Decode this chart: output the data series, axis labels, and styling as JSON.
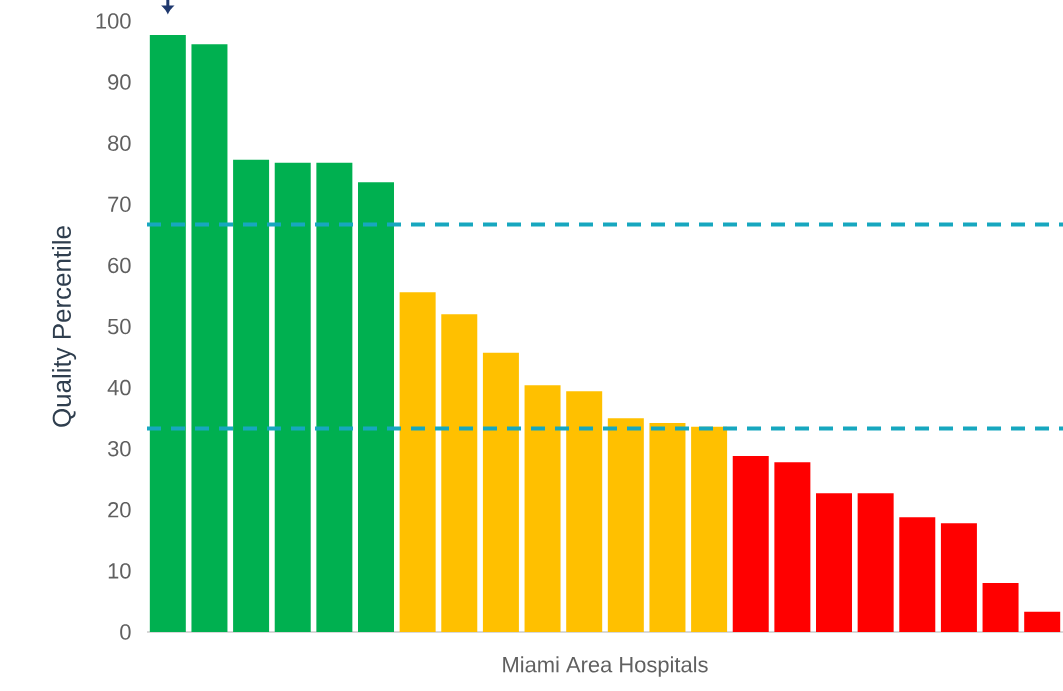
{
  "chart_data": {
    "type": "bar",
    "xlabel": "Miami Area Hospitals",
    "ylabel": "Quality Percentile",
    "categories": [
      null,
      null,
      null,
      null,
      null,
      null,
      null,
      null,
      null,
      null,
      null,
      null,
      null,
      null,
      null,
      null,
      null,
      null,
      null,
      null,
      null,
      null
    ],
    "values": [
      97.7,
      96.2,
      77.3,
      76.8,
      76.8,
      73.6,
      55.6,
      52.0,
      45.7,
      40.4,
      39.4,
      35.0,
      34.2,
      33.6,
      28.8,
      27.8,
      22.7,
      22.7,
      18.8,
      17.8,
      8.0,
      3.3
    ],
    "colors": [
      "#00b050",
      "#00b050",
      "#00b050",
      "#00b050",
      "#00b050",
      "#00b050",
      "#ffc000",
      "#ffc000",
      "#ffc000",
      "#ffc000",
      "#ffc000",
      "#ffc000",
      "#ffc000",
      "#ffc000",
      "#ff0000",
      "#ff0000",
      "#ff0000",
      "#ff0000",
      "#ff0000",
      "#ff0000",
      "#ff0000",
      "#ff0000"
    ],
    "ylim": [
      0,
      100
    ],
    "yticks": [
      0,
      10,
      20,
      30,
      40,
      50,
      60,
      70,
      80,
      90,
      100
    ],
    "ref_lines": [
      {
        "axis": "y",
        "value": 66.7,
        "color": "#17a7bf",
        "line_style": "dashed"
      },
      {
        "axis": "y",
        "value": 33.3,
        "color": "#17a7bf",
        "line_style": "dashed"
      }
    ],
    "grid": false
  }
}
